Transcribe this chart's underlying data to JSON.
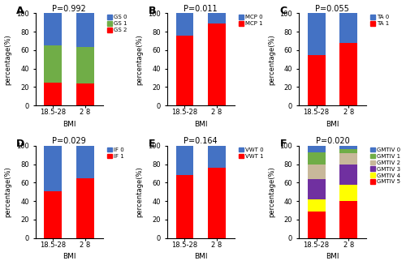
{
  "panels": [
    {
      "label": "A",
      "title": "P=0.992",
      "xlabel": "BMI",
      "ylabel": "percentage(%)",
      "categories": [
        "18.5-28",
        "2 8"
      ],
      "stacks": [
        {
          "name": "GS 2",
          "color": "#FF0000",
          "values": [
            25.0,
            24.0
          ]
        },
        {
          "name": "GS 1",
          "color": "#70AD47",
          "values": [
            40.0,
            39.0
          ]
        },
        {
          "name": "GS 0",
          "color": "#4472C4",
          "values": [
            35.0,
            37.0
          ]
        }
      ],
      "legend_order": [
        "GS 0",
        "GS 1",
        "GS 2"
      ],
      "legend_colors": [
        "#4472C4",
        "#70AD47",
        "#FF0000"
      ]
    },
    {
      "label": "B",
      "title": "P=0.011",
      "xlabel": "BMI",
      "ylabel": "percentage(%)",
      "categories": [
        "18.5-28",
        "2 8"
      ],
      "stacks": [
        {
          "name": "MCP 1",
          "color": "#FF0000",
          "values": [
            76.0,
            89.0
          ]
        },
        {
          "name": "MCP 0",
          "color": "#4472C4",
          "values": [
            24.0,
            11.0
          ]
        }
      ],
      "legend_order": [
        "MCP 0",
        "MCP 1"
      ],
      "legend_colors": [
        "#4472C4",
        "#FF0000"
      ]
    },
    {
      "label": "C",
      "title": "P=0.055",
      "xlabel": "BMI",
      "ylabel": "percentage(%)",
      "categories": [
        "18.5-28",
        "2 8"
      ],
      "stacks": [
        {
          "name": "TA 1",
          "color": "#FF0000",
          "values": [
            55.0,
            68.0
          ]
        },
        {
          "name": "TA 0",
          "color": "#4472C4",
          "values": [
            45.0,
            32.0
          ]
        }
      ],
      "legend_order": [
        "TA 0",
        "TA 1"
      ],
      "legend_colors": [
        "#4472C4",
        "#FF0000"
      ]
    },
    {
      "label": "D",
      "title": "P=0.029",
      "xlabel": "BMI",
      "ylabel": "percentage(%)",
      "categories": [
        "18.5-28",
        "2 8"
      ],
      "stacks": [
        {
          "name": "IF 1",
          "color": "#FF0000",
          "values": [
            51.0,
            65.0
          ]
        },
        {
          "name": "IF 0",
          "color": "#4472C4",
          "values": [
            49.0,
            35.0
          ]
        }
      ],
      "legend_order": [
        "IF 0",
        "IF 1"
      ],
      "legend_colors": [
        "#4472C4",
        "#FF0000"
      ]
    },
    {
      "label": "E",
      "title": "P=0.164",
      "xlabel": "BMI",
      "ylabel": "percentage(%)",
      "categories": [
        "18.5-28",
        "2 8"
      ],
      "stacks": [
        {
          "name": "VWT 1",
          "color": "#FF0000",
          "values": [
            68.0,
            76.0
          ]
        },
        {
          "name": "VWT 0",
          "color": "#4472C4",
          "values": [
            32.0,
            24.0
          ]
        }
      ],
      "legend_order": [
        "VWT 0",
        "VWT 1"
      ],
      "legend_colors": [
        "#4472C4",
        "#FF0000"
      ]
    },
    {
      "label": "F",
      "title": "P=0.020",
      "xlabel": "BMI",
      "ylabel": "percentage(%)",
      "categories": [
        "18.5-28",
        "2 8"
      ],
      "stacks": [
        {
          "name": "GMTIV 5",
          "color": "#FF0000",
          "values": [
            29.0,
            40.0
          ]
        },
        {
          "name": "GMTIV 4",
          "color": "#FFFF00",
          "values": [
            13.0,
            18.0
          ]
        },
        {
          "name": "GMTIV 3",
          "color": "#7030A0",
          "values": [
            22.0,
            22.0
          ]
        },
        {
          "name": "GMTIV 2",
          "color": "#C8B89A",
          "values": [
            16.0,
            12.0
          ]
        },
        {
          "name": "GMTIV 1",
          "color": "#70AD47",
          "values": [
            13.0,
            4.0
          ]
        },
        {
          "name": "GMTIV 0",
          "color": "#4472C4",
          "values": [
            7.0,
            4.0
          ]
        }
      ],
      "legend_order": [
        "GMTIV 0",
        "GMTIV 1",
        "GMTIV 2",
        "GMTIV 3",
        "GMTIV 4",
        "GMTIV 5"
      ],
      "legend_colors": [
        "#4472C4",
        "#70AD47",
        "#C8B89A",
        "#7030A0",
        "#FFFF00",
        "#FF0000"
      ]
    }
  ],
  "background_color": "#FFFFFF",
  "fig_width": 5.0,
  "fig_height": 3.27,
  "dpi": 100
}
